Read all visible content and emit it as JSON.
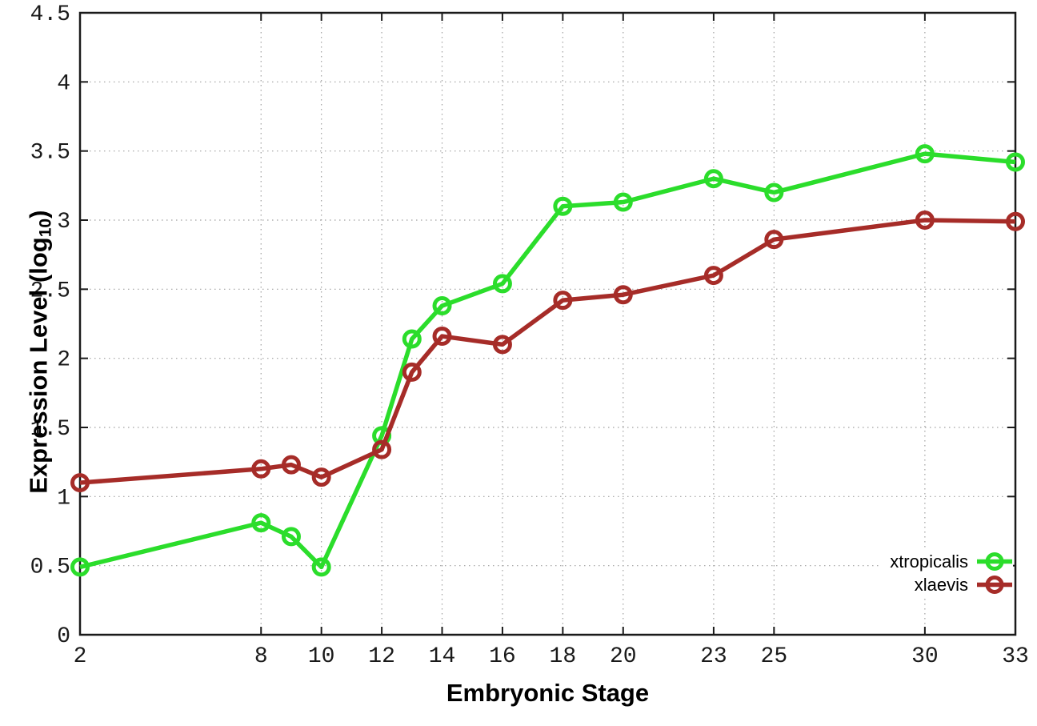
{
  "chart_data": {
    "type": "line",
    "title": "",
    "xlabel": "Embryonic Stage",
    "ylabel": "Expression Level (log10)",
    "ylabel_parts": {
      "pre": "Expression Level (log",
      "sub": "10",
      "post": ")"
    },
    "xlim": [
      2,
      33
    ],
    "ylim": [
      0,
      4.5
    ],
    "grid": true,
    "legend_position": "bottom-right",
    "x_axis": {
      "tick_values": [
        2,
        8,
        10,
        12,
        14,
        16,
        18,
        20,
        23,
        25,
        30,
        33
      ],
      "tick_labels": [
        "2",
        "8",
        "10",
        "12",
        "14",
        "16",
        "18",
        "20",
        "23",
        "25",
        "30",
        "33"
      ]
    },
    "y_axis": {
      "tick_values": [
        0,
        0.5,
        1,
        1.5,
        2,
        2.5,
        3,
        3.5,
        4,
        4.5
      ],
      "tick_labels": [
        "0",
        "0.5",
        "1",
        "1.5",
        "2",
        "2.5",
        "3",
        "3.5",
        "4",
        "4.5"
      ]
    },
    "x": [
      2,
      8,
      9,
      10,
      12,
      13,
      14,
      16,
      18,
      20,
      23,
      25,
      30,
      33
    ],
    "series": [
      {
        "name": "xtropicalis",
        "color": "#2bdd2b",
        "values": [
          0.49,
          0.81,
          0.71,
          0.49,
          1.44,
          2.14,
          2.38,
          2.54,
          3.1,
          3.13,
          3.3,
          3.2,
          3.48,
          3.42
        ]
      },
      {
        "name": "xlaevis",
        "color": "#a62c28",
        "values": [
          1.1,
          1.2,
          1.23,
          1.14,
          1.34,
          1.9,
          2.16,
          2.1,
          2.42,
          2.46,
          2.6,
          2.86,
          3.0,
          2.99
        ]
      }
    ],
    "colors": {
      "background": "#ffffff",
      "axis": "#1a1a1a",
      "grid": "#a0a0a0",
      "tick_text": "#1a1a1a"
    }
  }
}
